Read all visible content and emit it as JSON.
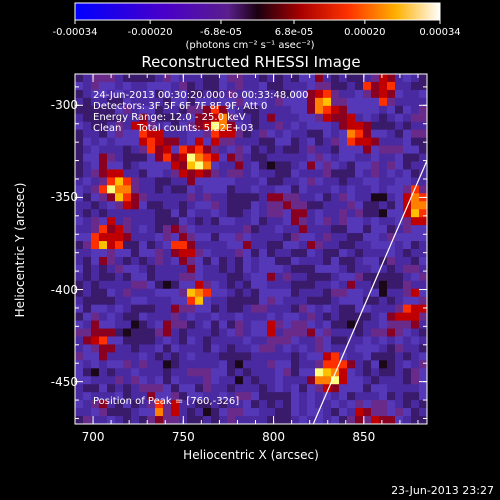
{
  "chart_data": {
    "type": "heatmap",
    "title": "Reconstructed RHESSI Image",
    "xlabel": "Heliocentric X (arcsec)",
    "ylabel": "Heliocentric Y (arcsec)",
    "xlim": [
      690,
      885
    ],
    "ylim": [
      -473,
      -283
    ],
    "xticks": [
      "700",
      "750",
      "800",
      "850"
    ],
    "xtick_values": [
      700,
      750,
      800,
      850
    ],
    "yticks": [
      "-300",
      "-350",
      "-400",
      "-450"
    ],
    "ytick_values": [
      -300,
      -350,
      -400,
      -450
    ],
    "colorbar": {
      "ticks": [
        "-0.00034",
        "-0.00020",
        "-6.8e-05",
        "6.8e-05",
        "0.00020",
        "0.00034"
      ],
      "tick_values": [
        -0.00034,
        -0.0002,
        -6.8e-05,
        6.8e-05,
        0.0002,
        0.00034
      ],
      "units": "(photons cm⁻² s⁻¹ asec⁻²)"
    },
    "info_lines": [
      "24-Jun-2013 00:30:20.000 to 00:33:48.000",
      "Detectors: 3F 5F 6F 7F 8F 9F, Att 0",
      "Energy Range: 12.0 - 25.0 keV",
      "Clean     Total counts: 5.22E+03"
    ],
    "peak_label": "Position of Peak = [760,-326]",
    "limb_line": [
      [
        822,
        -473
      ],
      [
        885,
        -330
      ]
    ],
    "sources": [
      {
        "x": 758,
        "y": -330,
        "amp": 1.0
      },
      {
        "x": 772,
        "y": -310,
        "amp": 0.7
      },
      {
        "x": 712,
        "y": -345,
        "amp": 0.75
      },
      {
        "x": 733,
        "y": -320,
        "amp": 0.6
      },
      {
        "x": 830,
        "y": -445,
        "amp": 0.95
      },
      {
        "x": 826,
        "y": -300,
        "amp": 0.7
      },
      {
        "x": 848,
        "y": -318,
        "amp": 0.6
      },
      {
        "x": 858,
        "y": -293,
        "amp": 0.55
      },
      {
        "x": 878,
        "y": -355,
        "amp": 0.65
      },
      {
        "x": 877,
        "y": -415,
        "amp": 0.6
      },
      {
        "x": 756,
        "y": -405,
        "amp": 0.55
      },
      {
        "x": 752,
        "y": -378,
        "amp": 0.5
      },
      {
        "x": 710,
        "y": -372,
        "amp": 0.6
      },
      {
        "x": 703,
        "y": -430,
        "amp": 0.5
      },
      {
        "x": 800,
        "y": -420,
        "amp": 0.45
      },
      {
        "x": 850,
        "y": -470,
        "amp": 0.5
      },
      {
        "x": 736,
        "y": -462,
        "amp": 0.4
      },
      {
        "x": 815,
        "y": -360,
        "amp": 0.35
      }
    ]
  },
  "timestamp": "23-Jun-2013 23:27"
}
